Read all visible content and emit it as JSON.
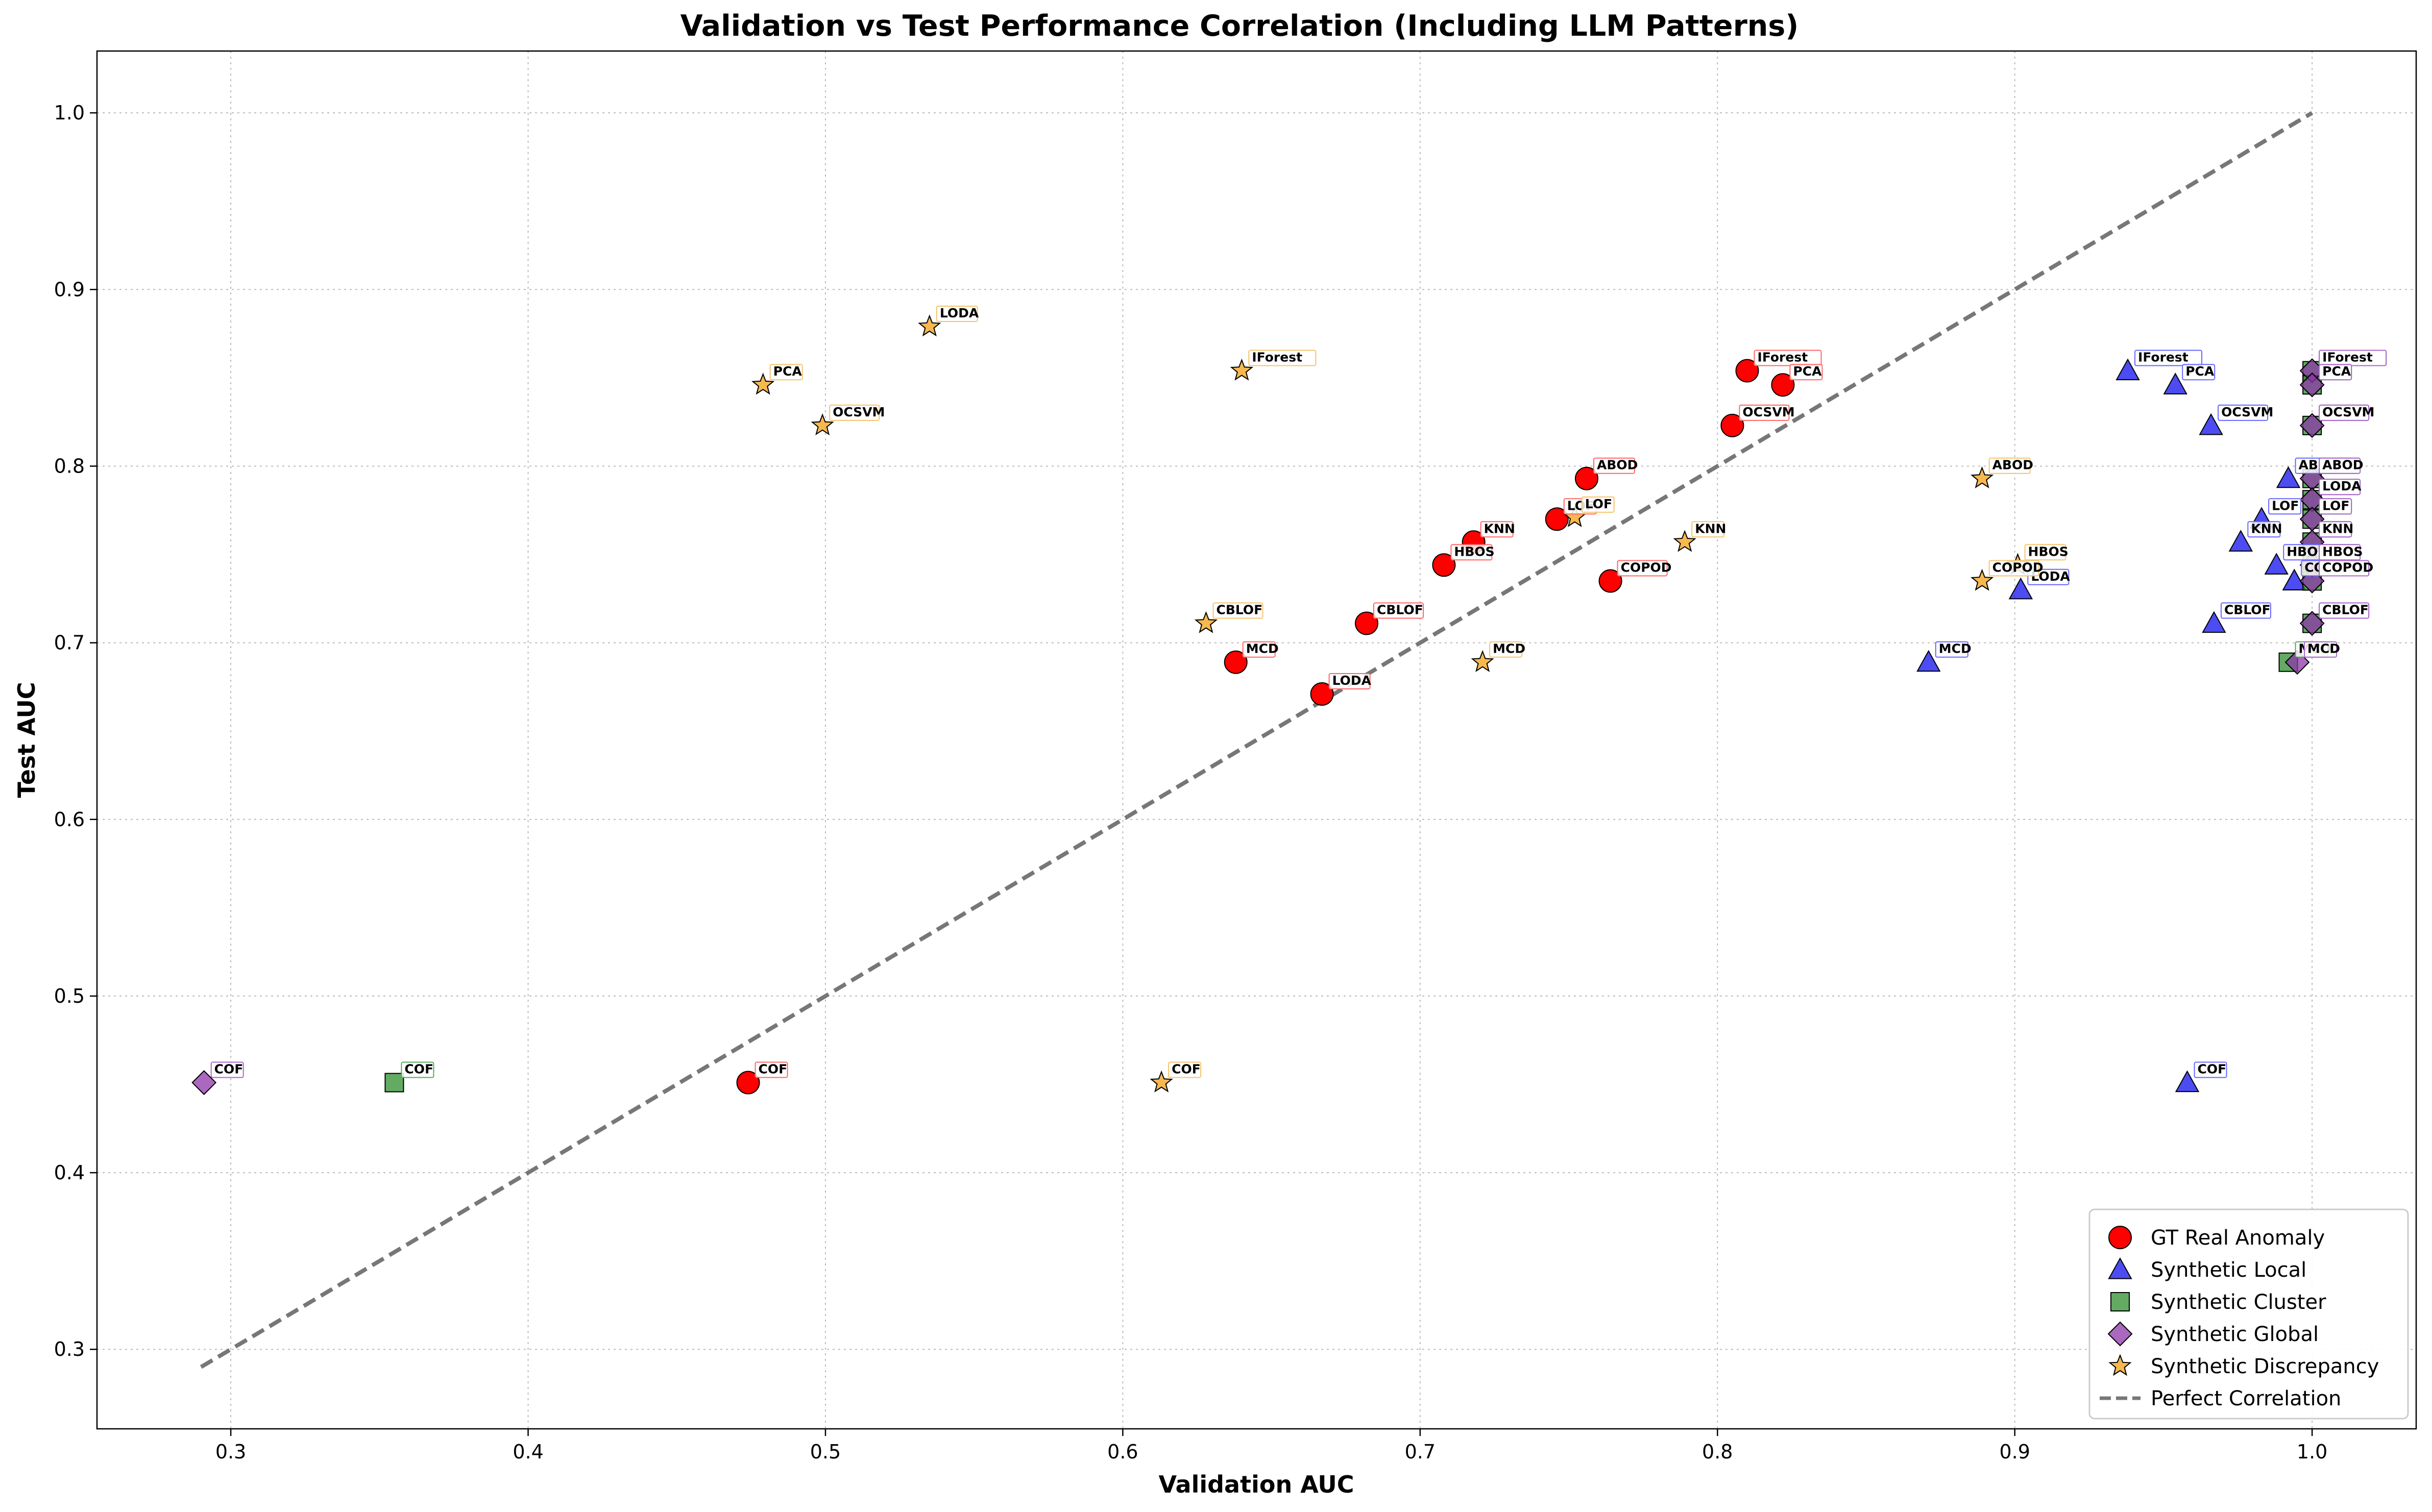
{
  "chart_data": {
    "type": "scatter",
    "title": "Validation vs Test Performance Correlation (Including LLM Patterns)",
    "xlabel": "Validation AUC",
    "ylabel": "Test AUC",
    "xlim": [
      0.255,
      1.035
    ],
    "ylim": [
      0.255,
      1.035
    ],
    "xticks": [
      "0.3",
      "0.4",
      "0.5",
      "0.6",
      "0.7",
      "0.8",
      "0.9",
      "1.0"
    ],
    "yticks": [
      "0.3",
      "0.4",
      "0.5",
      "0.6",
      "0.7",
      "0.8",
      "0.9",
      "1.0"
    ],
    "grid": true,
    "legend_position": "bottom-right",
    "reference_line": {
      "name": "Perfect Correlation",
      "from": [
        0.29,
        0.29
      ],
      "to": [
        1.0,
        1.0
      ],
      "color": "#777777",
      "style": "dashed"
    },
    "series": [
      {
        "name": "GT Real Anomaly",
        "marker": "circle",
        "color": "#ff0000",
        "points": [
          {
            "x": 0.81,
            "y": 0.854,
            "label": "IForest"
          },
          {
            "x": 0.822,
            "y": 0.846,
            "label": "PCA"
          },
          {
            "x": 0.805,
            "y": 0.823,
            "label": "OCSVM"
          },
          {
            "x": 0.756,
            "y": 0.793,
            "label": "ABOD"
          },
          {
            "x": 0.746,
            "y": 0.77,
            "label": "LOF"
          },
          {
            "x": 0.718,
            "y": 0.757,
            "label": "KNN"
          },
          {
            "x": 0.708,
            "y": 0.744,
            "label": "HBOS"
          },
          {
            "x": 0.764,
            "y": 0.735,
            "label": "COPOD"
          },
          {
            "x": 0.682,
            "y": 0.711,
            "label": "CBLOF"
          },
          {
            "x": 0.638,
            "y": 0.689,
            "label": "MCD"
          },
          {
            "x": 0.667,
            "y": 0.671,
            "label": "LODA"
          },
          {
            "x": 0.474,
            "y": 0.451,
            "label": "COF"
          }
        ]
      },
      {
        "name": "Synthetic Local",
        "marker": "triangle",
        "color": "#1010ee",
        "points": [
          {
            "x": 0.938,
            "y": 0.854,
            "label": "IForest"
          },
          {
            "x": 0.954,
            "y": 0.846,
            "label": "PCA"
          },
          {
            "x": 0.966,
            "y": 0.823,
            "label": "OCSVM"
          },
          {
            "x": 0.992,
            "y": 0.793,
            "label": "ABOD"
          },
          {
            "x": 0.983,
            "y": 0.77,
            "label": "LOF"
          },
          {
            "x": 0.976,
            "y": 0.757,
            "label": "KNN"
          },
          {
            "x": 0.988,
            "y": 0.744,
            "label": "HBOS"
          },
          {
            "x": 0.994,
            "y": 0.735,
            "label": "COPOD"
          },
          {
            "x": 0.902,
            "y": 0.73,
            "label": "LODA"
          },
          {
            "x": 0.967,
            "y": 0.711,
            "label": "CBLOF"
          },
          {
            "x": 0.871,
            "y": 0.689,
            "label": "MCD"
          },
          {
            "x": 0.958,
            "y": 0.451,
            "label": "COF"
          }
        ]
      },
      {
        "name": "Synthetic Cluster",
        "marker": "square",
        "color": "#2f8f2f",
        "points": [
          {
            "x": 1.0,
            "y": 0.854,
            "label": "IForest"
          },
          {
            "x": 1.0,
            "y": 0.846,
            "label": "PCA"
          },
          {
            "x": 1.0,
            "y": 0.823,
            "label": "OCSVM"
          },
          {
            "x": 1.0,
            "y": 0.793,
            "label": "ABOD"
          },
          {
            "x": 1.0,
            "y": 0.781,
            "label": "LODA"
          },
          {
            "x": 1.0,
            "y": 0.77,
            "label": "LOF"
          },
          {
            "x": 1.0,
            "y": 0.757,
            "label": "KNN"
          },
          {
            "x": 1.0,
            "y": 0.744,
            "label": "HBOS"
          },
          {
            "x": 1.0,
            "y": 0.735,
            "label": "COPOD"
          },
          {
            "x": 1.0,
            "y": 0.711,
            "label": "CBLOF"
          },
          {
            "x": 0.992,
            "y": 0.689,
            "label": "MCD"
          },
          {
            "x": 0.355,
            "y": 0.451,
            "label": "COF"
          }
        ]
      },
      {
        "name": "Synthetic Global",
        "marker": "diamond",
        "color": "#8e35a8",
        "points": [
          {
            "x": 1.0,
            "y": 0.854,
            "label": "IForest"
          },
          {
            "x": 1.0,
            "y": 0.846,
            "label": "PCA"
          },
          {
            "x": 1.0,
            "y": 0.823,
            "label": "OCSVM"
          },
          {
            "x": 1.0,
            "y": 0.793,
            "label": "ABOD"
          },
          {
            "x": 1.0,
            "y": 0.781,
            "label": "LODA"
          },
          {
            "x": 1.0,
            "y": 0.77,
            "label": "LOF"
          },
          {
            "x": 1.0,
            "y": 0.757,
            "label": "KNN"
          },
          {
            "x": 1.0,
            "y": 0.744,
            "label": "HBOS"
          },
          {
            "x": 1.0,
            "y": 0.735,
            "label": "COPOD"
          },
          {
            "x": 1.0,
            "y": 0.711,
            "label": "CBLOF"
          },
          {
            "x": 0.995,
            "y": 0.689,
            "label": "MCD"
          },
          {
            "x": 0.291,
            "y": 0.451,
            "label": "COF"
          }
        ]
      },
      {
        "name": "Synthetic Discrepancy",
        "marker": "star",
        "color": "#f5a623",
        "points": [
          {
            "x": 0.535,
            "y": 0.879,
            "label": "LODA"
          },
          {
            "x": 0.64,
            "y": 0.854,
            "label": "IForest"
          },
          {
            "x": 0.479,
            "y": 0.846,
            "label": "PCA"
          },
          {
            "x": 0.499,
            "y": 0.823,
            "label": "OCSVM"
          },
          {
            "x": 0.889,
            "y": 0.793,
            "label": "ABOD"
          },
          {
            "x": 0.752,
            "y": 0.771,
            "label": "LOF"
          },
          {
            "x": 0.789,
            "y": 0.757,
            "label": "KNN"
          },
          {
            "x": 0.901,
            "y": 0.744,
            "label": "HBOS"
          },
          {
            "x": 0.889,
            "y": 0.735,
            "label": "COPOD"
          },
          {
            "x": 0.628,
            "y": 0.711,
            "label": "CBLOF"
          },
          {
            "x": 0.721,
            "y": 0.689,
            "label": "MCD"
          },
          {
            "x": 0.613,
            "y": 0.451,
            "label": "COF"
          }
        ]
      }
    ]
  }
}
